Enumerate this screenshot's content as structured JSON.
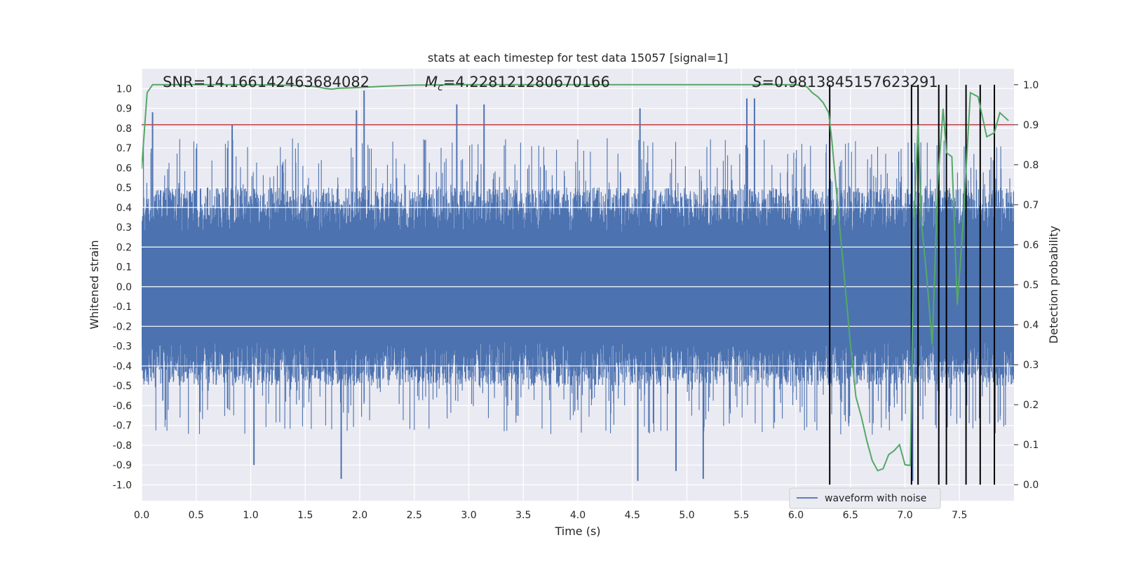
{
  "chart_data": {
    "type": "line",
    "title": "stats at each timestep for test data 15057 [signal=1]",
    "xlabel": "Time (s)",
    "ylabel_left": "Whitened strain",
    "ylabel_right": "Detection probability",
    "xlim": [
      0.0,
      8.0
    ],
    "ylim_left": [
      -1.08,
      1.1
    ],
    "ylim_right": [
      -0.04,
      1.04
    ],
    "grid": true,
    "x_ticks": [
      "0.0",
      "0.5",
      "1.0",
      "1.5",
      "2.0",
      "2.5",
      "3.0",
      "3.5",
      "4.0",
      "4.5",
      "5.0",
      "5.5",
      "6.0",
      "6.5",
      "7.0",
      "7.5"
    ],
    "x_tick_values": [
      0,
      0.5,
      1,
      1.5,
      2,
      2.5,
      3,
      3.5,
      4,
      4.5,
      5,
      5.5,
      6,
      6.5,
      7,
      7.5
    ],
    "y_left_ticks": [
      "1.0",
      "0.9",
      "0.8",
      "0.7",
      "0.6",
      "0.5",
      "0.4",
      "0.3",
      "0.2",
      "0.1",
      "0.0",
      "-0.1",
      "-0.2",
      "-0.3",
      "-0.4",
      "-0.5",
      "-0.6",
      "-0.7",
      "-0.8",
      "-0.9",
      "-1.0"
    ],
    "y_left_tick_values": [
      1,
      0.9,
      0.8,
      0.7,
      0.6,
      0.5,
      0.4,
      0.3,
      0.2,
      0.1,
      0,
      -0.1,
      -0.2,
      -0.3,
      -0.4,
      -0.5,
      -0.6,
      -0.7,
      -0.8,
      -0.9,
      -1
    ],
    "y_right_ticks": [
      "1.0",
      "0.9",
      "0.8",
      "0.7",
      "0.6",
      "0.5",
      "0.4",
      "0.3",
      "0.2",
      "0.1",
      "0.0"
    ],
    "y_right_tick_values": [
      1,
      0.9,
      0.8,
      0.7,
      0.6,
      0.5,
      0.4,
      0.3,
      0.2,
      0.1,
      0
    ],
    "annotations": {
      "snr": "SNR=14.166142463684082",
      "mc_symbol": "M",
      "mc_sub": "c",
      "mc_value": "=4.228121280670166",
      "s_symbol": "S",
      "s_value": "=0.9813845157623291"
    },
    "threshold": {
      "value": 0.9,
      "axis": "right",
      "color": "#c44e52"
    },
    "detection_times": [
      6.31,
      7.06,
      7.12,
      7.31,
      7.38,
      7.56,
      7.69,
      7.82
    ],
    "legend": {
      "label": "waveform with noise",
      "position": "lower-right"
    },
    "waveform": {
      "name": "waveform with noise",
      "color": "#4c72b0",
      "envelope_upper_typical": 0.5,
      "envelope_lower_typical": -0.5,
      "peaks": [
        {
          "x": 0.1,
          "y": 0.88
        },
        {
          "x": 0.83,
          "y": 0.82
        },
        {
          "x": 1.97,
          "y": 0.89
        },
        {
          "x": 2.04,
          "y": 0.99
        },
        {
          "x": 2.89,
          "y": 0.92
        },
        {
          "x": 3.14,
          "y": 0.92
        },
        {
          "x": 4.57,
          "y": 0.9
        },
        {
          "x": 5.55,
          "y": 0.95
        },
        {
          "x": 5.62,
          "y": 0.95
        },
        {
          "x": 1.83,
          "y": -0.97
        },
        {
          "x": 4.55,
          "y": -0.98
        },
        {
          "x": 5.15,
          "y": -0.97
        },
        {
          "x": 7.07,
          "y": -0.98
        },
        {
          "x": 1.03,
          "y": -0.9
        },
        {
          "x": 4.9,
          "y": -0.93
        }
      ]
    },
    "probability": {
      "name": "detection probability",
      "color": "#55a868",
      "x": [
        0.0,
        0.05,
        0.1,
        0.2,
        0.5,
        1.0,
        1.5,
        1.6,
        1.7,
        1.75,
        1.8,
        1.9,
        2.0,
        2.2,
        2.5,
        3.0,
        3.5,
        4.0,
        4.5,
        5.0,
        5.5,
        5.9,
        6.0,
        6.05,
        6.1,
        6.15,
        6.2,
        6.25,
        6.3,
        6.33,
        6.4,
        6.45,
        6.5,
        6.55,
        6.6,
        6.65,
        6.7,
        6.75,
        6.8,
        6.85,
        6.9,
        6.95,
        7.0,
        7.05,
        7.08,
        7.12,
        7.15,
        7.2,
        7.25,
        7.3,
        7.35,
        7.38,
        7.43,
        7.48,
        7.53,
        7.6,
        7.67,
        7.75,
        7.82,
        7.87,
        7.95
      ],
      "y": [
        0.79,
        0.98,
        1.0,
        1.0,
        1.0,
        1.0,
        0.998,
        0.995,
        0.99,
        0.989,
        0.991,
        0.992,
        0.993,
        0.996,
        0.999,
        1.0,
        1.0,
        1.0,
        1.0,
        1.0,
        1.0,
        1.0,
        1.0,
        0.998,
        0.995,
        0.98,
        0.97,
        0.955,
        0.93,
        0.86,
        0.65,
        0.5,
        0.35,
        0.22,
        0.17,
        0.11,
        0.06,
        0.035,
        0.04,
        0.075,
        0.085,
        0.1,
        0.05,
        0.048,
        0.64,
        0.9,
        0.66,
        0.52,
        0.35,
        0.75,
        0.94,
        0.83,
        0.82,
        0.45,
        0.64,
        0.98,
        0.97,
        0.87,
        0.88,
        0.93,
        0.91
      ]
    }
  }
}
